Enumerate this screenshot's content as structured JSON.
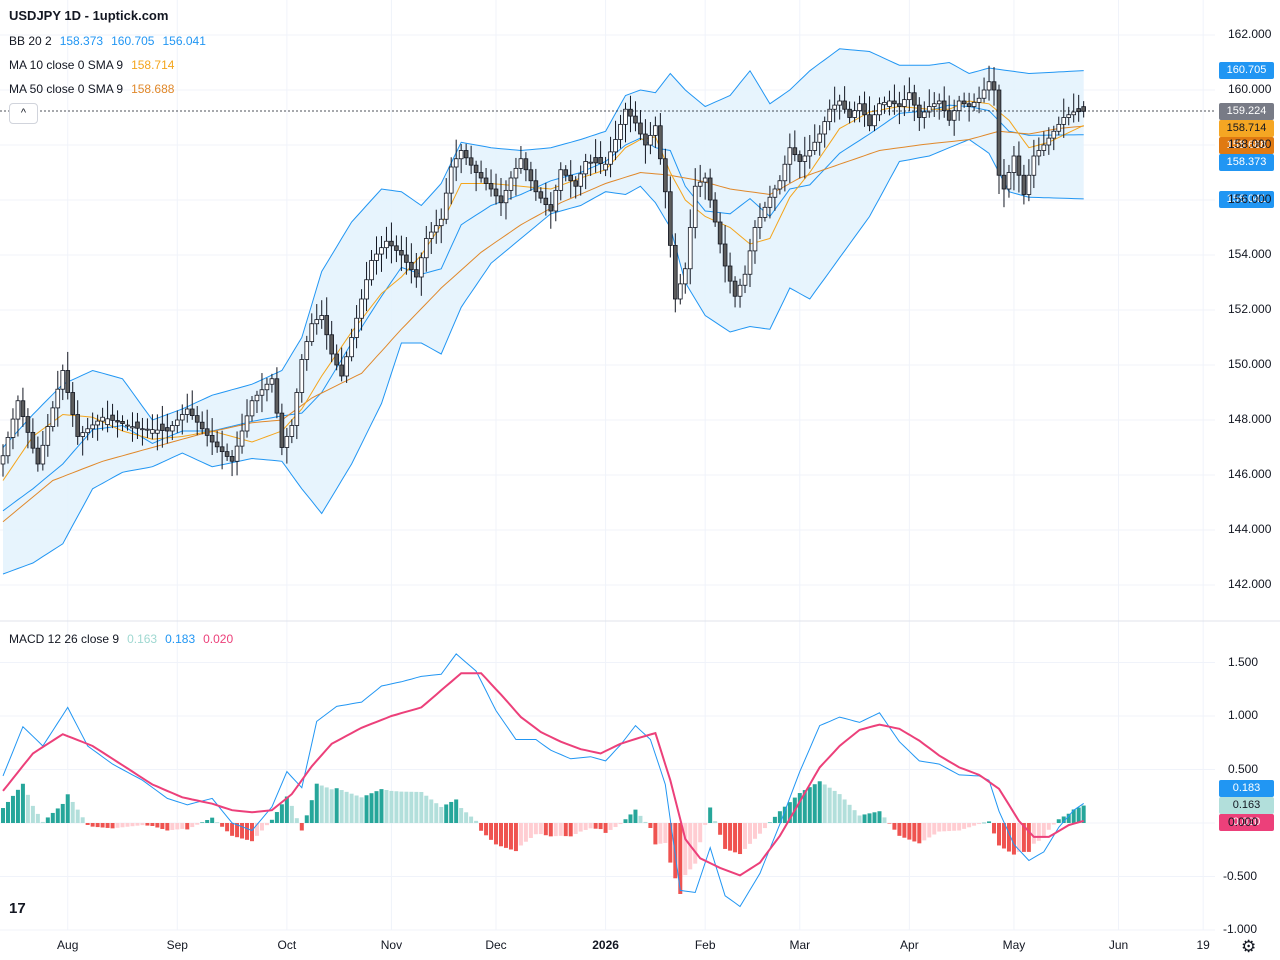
{
  "header": {
    "title": "USDJPY 1D - 1uptick.com",
    "bb": {
      "label": "BB 20 2",
      "v1": "158.373",
      "v2": "160.705",
      "v3": "156.041"
    },
    "ma10": {
      "label": "MA 10 close 0 SMA 9",
      "value": "158.714"
    },
    "ma50": {
      "label": "MA 50 close 0 SMA 9",
      "value": "158.688"
    },
    "collapse_icon": "^"
  },
  "macd_legend": {
    "label": "MACD 12 26 close 9",
    "hist": "0.163",
    "macd": "0.183",
    "signal": "0.020"
  },
  "badges": {
    "bb_upper": "160.705",
    "last": "159.224",
    "ma10": "158.714",
    "ma50": "158.688",
    "bb_mid": "158.373",
    "bb_lower": "156.041",
    "macd": "0.183",
    "hist": "0.163",
    "signal": "0.020"
  },
  "colors": {
    "up": "#ffffff",
    "down": "#5d5d5d",
    "wick": "#131722",
    "bb": "#2196f3",
    "bb_fill": "#e3f2fd",
    "ma10": "#f4a51c",
    "ma50": "#e0882a",
    "macd": "#2196f3",
    "signal": "#ec407a",
    "hist_up_strong": "#26a69a",
    "hist_up_weak": "#b2dfdb",
    "hist_dn_strong": "#ef5350",
    "hist_dn_weak": "#ffcdd2"
  },
  "icons": [
    "tradingview-logo-icon",
    "settings-gear-icon",
    "chevron-up-icon"
  ],
  "logo_text": "17",
  "gear_glyph": "⚙",
  "chart_data": {
    "type": "candlestick",
    "title": "USDJPY 1D - 1uptick.com",
    "price_axis": {
      "ticks": [
        "162.000",
        "160.000",
        "158.000",
        "156.000",
        "154.000",
        "152.000",
        "150.000",
        "148.000",
        "146.000",
        "144.000",
        "142.000"
      ],
      "ylim": [
        141.0,
        162.0
      ]
    },
    "macd_axis": {
      "ticks": [
        "1.500",
        "1.000",
        "0.500",
        "0.000",
        "-0.500",
        "-1.000"
      ],
      "ylim": [
        -1.0,
        1.6
      ]
    },
    "x_ticks": [
      "Aug",
      "Sep",
      "Oct",
      "Nov",
      "Dec",
      "2026",
      "Feb",
      "Mar",
      "Apr",
      "May",
      "Jun",
      "19"
    ],
    "x_tick_index": [
      13,
      35,
      57,
      78,
      99,
      121,
      141,
      160,
      182,
      203,
      224,
      241
    ],
    "last_price": 159.224,
    "close_anchors": [
      [
        0,
        146.7
      ],
      [
        3,
        148.7
      ],
      [
        7,
        146.4
      ],
      [
        12,
        149.8
      ],
      [
        15,
        147.4
      ],
      [
        20,
        148.1
      ],
      [
        27,
        147.7
      ],
      [
        33,
        147.6
      ],
      [
        37,
        148.4
      ],
      [
        42,
        147.2
      ],
      [
        46,
        146.5
      ],
      [
        50,
        148.7
      ],
      [
        54,
        149.5
      ],
      [
        56,
        147.0
      ],
      [
        58,
        147.8
      ],
      [
        60,
        150.2
      ],
      [
        62,
        151.5
      ],
      [
        64,
        151.8
      ],
      [
        66,
        150.4
      ],
      [
        68,
        149.6
      ],
      [
        70,
        151.0
      ],
      [
        72,
        152.4
      ],
      [
        74,
        153.8
      ],
      [
        77,
        154.5
      ],
      [
        80,
        154.0
      ],
      [
        83,
        153.2
      ],
      [
        85,
        154.6
      ],
      [
        88,
        155.3
      ],
      [
        90,
        157.2
      ],
      [
        92,
        157.8
      ],
      [
        95,
        157.0
      ],
      [
        98,
        156.4
      ],
      [
        100,
        155.9
      ],
      [
        102,
        156.8
      ],
      [
        104,
        157.5
      ],
      [
        107,
        156.3
      ],
      [
        110,
        155.6
      ],
      [
        112,
        157.1
      ],
      [
        115,
        156.5
      ],
      [
        117,
        157.4
      ],
      [
        121,
        157.3
      ],
      [
        123,
        158.2
      ],
      [
        125,
        159.3
      ],
      [
        127,
        158.8
      ],
      [
        129,
        158.0
      ],
      [
        131,
        158.7
      ],
      [
        133,
        156.3
      ],
      [
        135,
        152.4
      ],
      [
        137,
        153.5
      ],
      [
        139,
        156.5
      ],
      [
        141,
        156.8
      ],
      [
        143,
        155.2
      ],
      [
        145,
        153.6
      ],
      [
        147,
        152.5
      ],
      [
        149,
        153.3
      ],
      [
        151,
        155.0
      ],
      [
        154,
        156.1
      ],
      [
        156,
        156.7
      ],
      [
        158,
        157.9
      ],
      [
        160,
        157.4
      ],
      [
        162,
        157.8
      ],
      [
        164,
        158.4
      ],
      [
        166,
        159.3
      ],
      [
        168,
        159.6
      ],
      [
        170,
        159.0
      ],
      [
        172,
        159.5
      ],
      [
        174,
        158.7
      ],
      [
        176,
        159.5
      ],
      [
        178,
        159.6
      ],
      [
        180,
        159.4
      ],
      [
        182,
        159.9
      ],
      [
        184,
        159.0
      ],
      [
        186,
        159.4
      ],
      [
        188,
        159.6
      ],
      [
        190,
        158.9
      ],
      [
        192,
        159.6
      ],
      [
        194,
        159.4
      ],
      [
        196,
        159.7
      ],
      [
        198,
        160.3
      ],
      [
        199,
        160.0
      ],
      [
        200,
        156.9
      ],
      [
        201,
        156.4
      ],
      [
        203,
        157.6
      ],
      [
        205,
        156.2
      ],
      [
        207,
        157.6
      ],
      [
        209,
        158.0
      ],
      [
        211,
        158.5
      ],
      [
        213,
        159.0
      ],
      [
        215,
        159.2
      ],
      [
        217,
        159.224
      ]
    ],
    "bb_upper_anchors": [
      [
        0,
        147.0
      ],
      [
        6,
        148.2
      ],
      [
        12,
        149.3
      ],
      [
        18,
        149.8
      ],
      [
        24,
        149.5
      ],
      [
        30,
        148.0
      ],
      [
        36,
        148.4
      ],
      [
        42,
        148.9
      ],
      [
        50,
        149.3
      ],
      [
        56,
        149.8
      ],
      [
        60,
        151.0
      ],
      [
        64,
        153.4
      ],
      [
        70,
        155.2
      ],
      [
        76,
        156.4
      ],
      [
        80,
        156.3
      ],
      [
        84,
        155.8
      ],
      [
        88,
        156.6
      ],
      [
        92,
        158.1
      ],
      [
        98,
        157.9
      ],
      [
        104,
        157.8
      ],
      [
        110,
        157.9
      ],
      [
        116,
        158.2
      ],
      [
        121,
        158.5
      ],
      [
        125,
        159.8
      ],
      [
        128,
        160.0
      ],
      [
        131,
        159.9
      ],
      [
        134,
        160.6
      ],
      [
        137,
        160.0
      ],
      [
        141,
        159.4
      ],
      [
        146,
        159.8
      ],
      [
        150,
        160.7
      ],
      [
        154,
        159.5
      ],
      [
        158,
        160.0
      ],
      [
        162,
        160.7
      ],
      [
        168,
        161.5
      ],
      [
        174,
        161.4
      ],
      [
        180,
        160.9
      ],
      [
        186,
        160.9
      ],
      [
        190,
        161.0
      ],
      [
        194,
        160.6
      ],
      [
        198,
        160.8
      ],
      [
        202,
        160.7
      ],
      [
        206,
        160.6
      ],
      [
        217,
        160.705
      ]
    ],
    "bb_lower_anchors": [
      [
        0,
        142.4
      ],
      [
        6,
        142.8
      ],
      [
        12,
        143.5
      ],
      [
        18,
        145.5
      ],
      [
        24,
        146.1
      ],
      [
        30,
        146.3
      ],
      [
        36,
        146.8
      ],
      [
        42,
        146.3
      ],
      [
        50,
        146.6
      ],
      [
        56,
        146.5
      ],
      [
        60,
        145.5
      ],
      [
        64,
        144.6
      ],
      [
        70,
        146.4
      ],
      [
        76,
        148.6
      ],
      [
        80,
        150.8
      ],
      [
        84,
        150.8
      ],
      [
        88,
        150.4
      ],
      [
        92,
        152.1
      ],
      [
        98,
        153.7
      ],
      [
        104,
        154.6
      ],
      [
        110,
        155.5
      ],
      [
        116,
        155.8
      ],
      [
        121,
        156.3
      ],
      [
        125,
        156.2
      ],
      [
        128,
        156.5
      ],
      [
        131,
        155.9
      ],
      [
        134,
        155.0
      ],
      [
        137,
        153.0
      ],
      [
        141,
        151.8
      ],
      [
        146,
        151.2
      ],
      [
        150,
        151.4
      ],
      [
        154,
        151.3
      ],
      [
        158,
        152.8
      ],
      [
        162,
        152.4
      ],
      [
        168,
        153.9
      ],
      [
        174,
        155.4
      ],
      [
        180,
        157.4
      ],
      [
        186,
        157.6
      ],
      [
        190,
        157.9
      ],
      [
        194,
        158.2
      ],
      [
        198,
        157.7
      ],
      [
        202,
        156.3
      ],
      [
        206,
        156.1
      ],
      [
        217,
        156.041
      ]
    ],
    "ma10_anchors": [
      [
        0,
        145.8
      ],
      [
        6,
        147.4
      ],
      [
        12,
        148.2
      ],
      [
        18,
        148.1
      ],
      [
        24,
        147.6
      ],
      [
        30,
        147.3
      ],
      [
        36,
        147.4
      ],
      [
        42,
        147.6
      ],
      [
        50,
        147.2
      ],
      [
        56,
        147.6
      ],
      [
        60,
        148.4
      ],
      [
        64,
        149.6
      ],
      [
        70,
        151.2
      ],
      [
        76,
        152.6
      ],
      [
        80,
        153.2
      ],
      [
        84,
        154.0
      ],
      [
        88,
        155.1
      ],
      [
        92,
        156.6
      ],
      [
        98,
        156.6
      ],
      [
        104,
        156.5
      ],
      [
        110,
        156.4
      ],
      [
        116,
        156.8
      ],
      [
        121,
        157.1
      ],
      [
        125,
        157.9
      ],
      [
        128,
        158.2
      ],
      [
        131,
        158.3
      ],
      [
        134,
        157.0
      ],
      [
        137,
        156.0
      ],
      [
        141,
        155.4
      ],
      [
        146,
        155.0
      ],
      [
        150,
        154.4
      ],
      [
        154,
        154.6
      ],
      [
        158,
        156.1
      ],
      [
        162,
        157.0
      ],
      [
        168,
        158.6
      ],
      [
        174,
        159.2
      ],
      [
        180,
        159.4
      ],
      [
        186,
        159.3
      ],
      [
        190,
        159.3
      ],
      [
        194,
        159.6
      ],
      [
        198,
        159.5
      ],
      [
        202,
        158.9
      ],
      [
        206,
        157.9
      ],
      [
        210,
        158.1
      ],
      [
        217,
        158.714
      ]
    ],
    "ma50_anchors": [
      [
        0,
        144.3
      ],
      [
        10,
        145.8
      ],
      [
        20,
        146.5
      ],
      [
        30,
        147.0
      ],
      [
        40,
        147.5
      ],
      [
        50,
        147.9
      ],
      [
        56,
        148.0
      ],
      [
        62,
        148.8
      ],
      [
        72,
        149.7
      ],
      [
        80,
        151.3
      ],
      [
        88,
        152.8
      ],
      [
        96,
        154.1
      ],
      [
        104,
        155.1
      ],
      [
        112,
        155.9
      ],
      [
        121,
        156.6
      ],
      [
        128,
        157.0
      ],
      [
        134,
        156.9
      ],
      [
        140,
        156.7
      ],
      [
        146,
        156.4
      ],
      [
        154,
        156.2
      ],
      [
        160,
        156.8
      ],
      [
        168,
        157.3
      ],
      [
        176,
        157.8
      ],
      [
        184,
        158.0
      ],
      [
        194,
        158.2
      ],
      [
        200,
        158.5
      ],
      [
        206,
        158.4
      ],
      [
        212,
        158.6
      ],
      [
        217,
        158.688
      ]
    ],
    "macd_anchors": [
      [
        0,
        0.44
      ],
      [
        4,
        0.9
      ],
      [
        8,
        0.72
      ],
      [
        13,
        1.08
      ],
      [
        17,
        0.72
      ],
      [
        22,
        0.55
      ],
      [
        28,
        0.4
      ],
      [
        33,
        0.23
      ],
      [
        37,
        0.17
      ],
      [
        42,
        0.23
      ],
      [
        46,
        0.0
      ],
      [
        50,
        -0.07
      ],
      [
        54,
        0.15
      ],
      [
        57,
        0.48
      ],
      [
        60,
        0.33
      ],
      [
        63,
        0.95
      ],
      [
        67,
        1.09
      ],
      [
        72,
        1.13
      ],
      [
        76,
        1.28
      ],
      [
        80,
        1.32
      ],
      [
        84,
        1.37
      ],
      [
        88,
        1.39
      ],
      [
        91,
        1.58
      ],
      [
        95,
        1.42
      ],
      [
        99,
        1.05
      ],
      [
        103,
        0.78
      ],
      [
        107,
        0.78
      ],
      [
        110,
        0.68
      ],
      [
        114,
        0.6
      ],
      [
        118,
        0.62
      ],
      [
        121,
        0.58
      ],
      [
        124,
        0.73
      ],
      [
        127,
        0.91
      ],
      [
        130,
        0.78
      ],
      [
        133,
        0.36
      ],
      [
        136,
        -0.63
      ],
      [
        139,
        -0.65
      ],
      [
        142,
        -0.23
      ],
      [
        145,
        -0.68
      ],
      [
        148,
        -0.78
      ],
      [
        152,
        -0.47
      ],
      [
        156,
        -0.01
      ],
      [
        160,
        0.48
      ],
      [
        164,
        0.91
      ],
      [
        168,
        0.99
      ],
      [
        172,
        0.94
      ],
      [
        176,
        1.03
      ],
      [
        180,
        0.76
      ],
      [
        184,
        0.58
      ],
      [
        188,
        0.55
      ],
      [
        192,
        0.45
      ],
      [
        196,
        0.44
      ],
      [
        198,
        0.4
      ],
      [
        200,
        0.11
      ],
      [
        203,
        -0.2
      ],
      [
        206,
        -0.35
      ],
      [
        209,
        -0.27
      ],
      [
        212,
        -0.04
      ],
      [
        215,
        0.12
      ],
      [
        217,
        0.183
      ]
    ],
    "signal_anchors": [
      [
        0,
        0.3
      ],
      [
        6,
        0.65
      ],
      [
        12,
        0.83
      ],
      [
        18,
        0.72
      ],
      [
        24,
        0.54
      ],
      [
        30,
        0.36
      ],
      [
        36,
        0.24
      ],
      [
        42,
        0.18
      ],
      [
        46,
        0.12
      ],
      [
        50,
        0.1
      ],
      [
        54,
        0.12
      ],
      [
        58,
        0.27
      ],
      [
        62,
        0.53
      ],
      [
        66,
        0.74
      ],
      [
        72,
        0.89
      ],
      [
        78,
        1.0
      ],
      [
        84,
        1.08
      ],
      [
        88,
        1.24
      ],
      [
        92,
        1.4
      ],
      [
        96,
        1.4
      ],
      [
        100,
        1.2
      ],
      [
        104,
        0.99
      ],
      [
        108,
        0.85
      ],
      [
        112,
        0.76
      ],
      [
        116,
        0.69
      ],
      [
        120,
        0.65
      ],
      [
        124,
        0.74
      ],
      [
        128,
        0.8
      ],
      [
        131,
        0.84
      ],
      [
        134,
        0.4
      ],
      [
        137,
        -0.15
      ],
      [
        140,
        -0.33
      ],
      [
        144,
        -0.42
      ],
      [
        148,
        -0.49
      ],
      [
        152,
        -0.37
      ],
      [
        156,
        -0.12
      ],
      [
        160,
        0.2
      ],
      [
        164,
        0.52
      ],
      [
        168,
        0.72
      ],
      [
        172,
        0.87
      ],
      [
        176,
        0.92
      ],
      [
        180,
        0.88
      ],
      [
        184,
        0.77
      ],
      [
        188,
        0.63
      ],
      [
        192,
        0.52
      ],
      [
        196,
        0.45
      ],
      [
        200,
        0.32
      ],
      [
        204,
        0.02
      ],
      [
        207,
        -0.13
      ],
      [
        210,
        -0.13
      ],
      [
        214,
        -0.02
      ],
      [
        217,
        0.02
      ]
    ]
  }
}
